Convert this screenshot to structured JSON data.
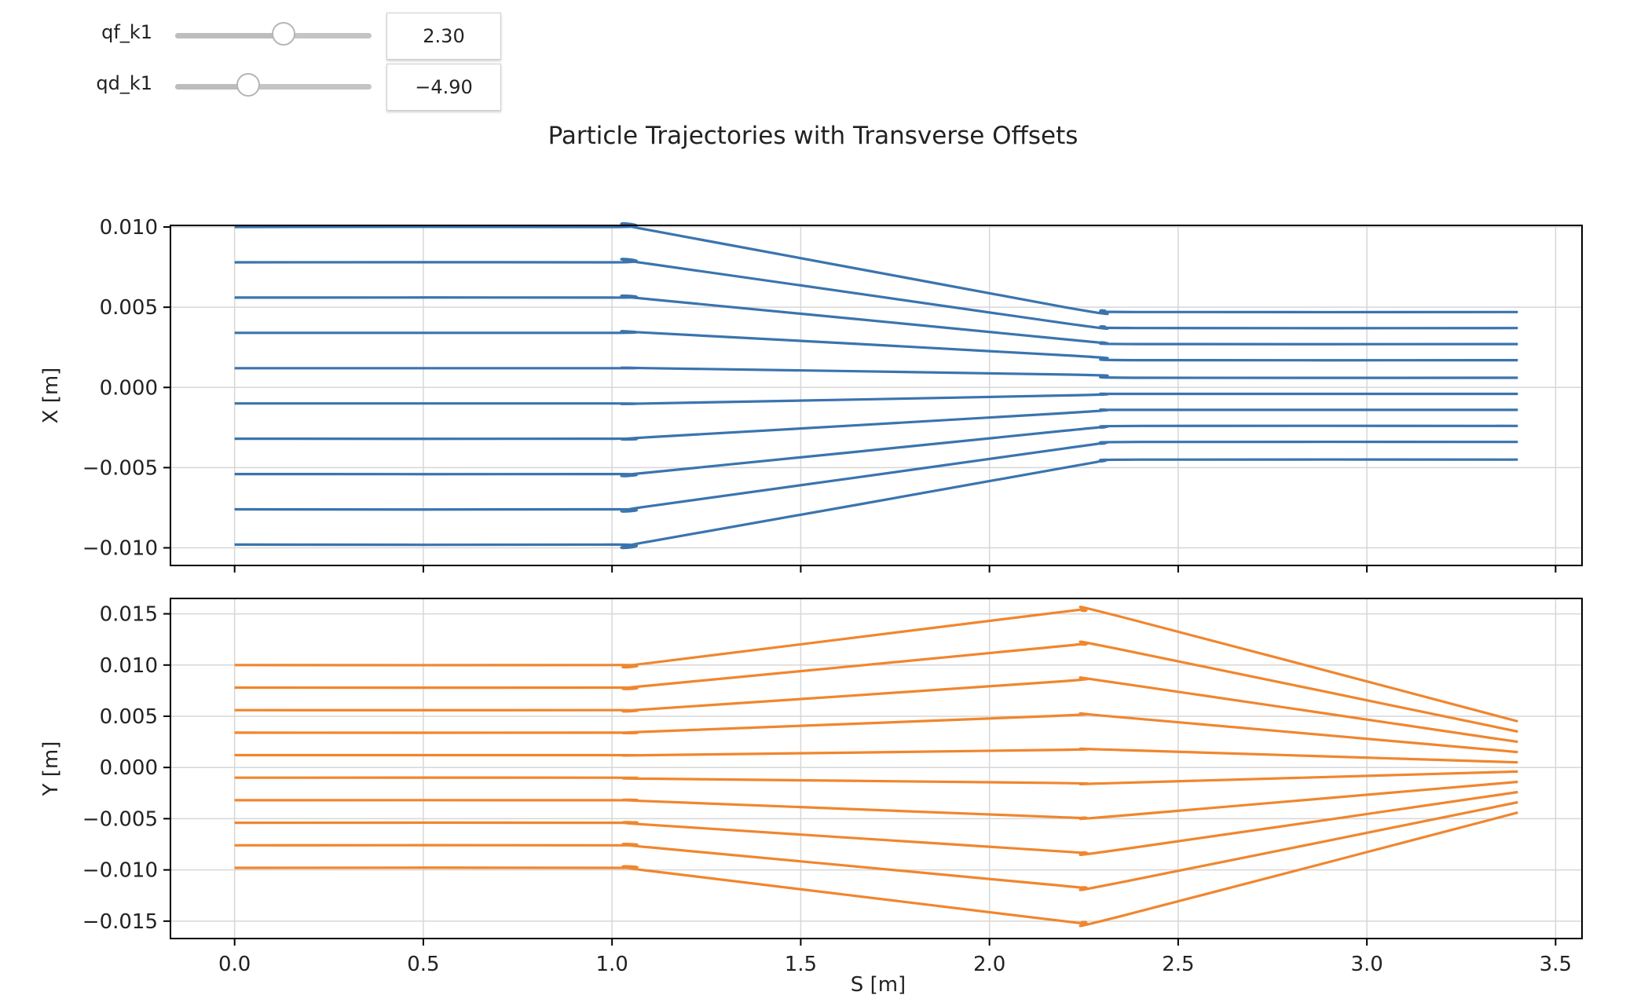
{
  "controls": {
    "qf": {
      "label": "qf_k1",
      "value": "2.30",
      "level": 0.55
    },
    "qd": {
      "label": "qd_k1",
      "value": "−4.90",
      "level": 0.37
    }
  },
  "chart_data": {
    "type": "line",
    "title": "Particle Trajectories with Transverse Offsets",
    "colors": {
      "x": "#3a74ae",
      "y": "#f0862e",
      "grid": "#d7d7d7",
      "axis": "#000000"
    },
    "grid": true,
    "shared_x": {
      "label": "S [m]",
      "lim": [
        -0.17,
        3.57
      ],
      "ticks": [
        0.0,
        0.5,
        1.0,
        1.5,
        2.0,
        2.5,
        3.0,
        3.5
      ],
      "tick_labels": [
        "0.0",
        "0.5",
        "1.0",
        "1.5",
        "2.0",
        "2.5",
        "3.0",
        "3.5"
      ]
    },
    "panels": [
      {
        "name": "X",
        "ylabel": "X [m]",
        "ylim": [
          -0.0111,
          0.0101
        ],
        "yticks": [
          0.01,
          0.005,
          0.0,
          -0.005,
          -0.01
        ],
        "ytick_labels": [
          "0.010",
          "0.005",
          "0.000",
          "−0.005",
          "−0.010"
        ],
        "color_key": "x",
        "show_xtick_labels": false,
        "x": [
          0.0,
          1.0,
          1.1,
          2.2,
          2.3,
          2.4,
          3.4
        ],
        "series": [
          [
            0.01,
            0.01,
            0.0098,
            0.005,
            0.0048,
            0.0047,
            0.0047
          ],
          [
            0.0078,
            0.0078,
            0.0077,
            0.004,
            0.0038,
            0.0037,
            0.0037
          ],
          [
            0.0056,
            0.0056,
            0.0055,
            0.003,
            0.0028,
            0.0027,
            0.0027
          ],
          [
            0.0034,
            0.0034,
            0.0034,
            0.002,
            0.0018,
            0.0017,
            0.0017
          ],
          [
            0.0012,
            0.0012,
            0.0012,
            0.0008,
            0.0007,
            0.0006,
            0.0006
          ],
          [
            -0.001,
            -0.001,
            -0.001,
            -0.0005,
            -0.0004,
            -0.0004,
            -0.0004
          ],
          [
            -0.0032,
            -0.0032,
            -0.0031,
            -0.0016,
            -0.0014,
            -0.0014,
            -0.0014
          ],
          [
            -0.0054,
            -0.0054,
            -0.0053,
            -0.0027,
            -0.0025,
            -0.0024,
            -0.0024
          ],
          [
            -0.0076,
            -0.0076,
            -0.0074,
            -0.0038,
            -0.0035,
            -0.0034,
            -0.0034
          ],
          [
            -0.0098,
            -0.0098,
            -0.0096,
            -0.005,
            -0.0046,
            -0.0045,
            -0.0045
          ]
        ]
      },
      {
        "name": "Y",
        "ylabel": "Y [m]",
        "ylim": [
          -0.0167,
          0.0165
        ],
        "yticks": [
          0.015,
          0.01,
          0.005,
          0.0,
          -0.005,
          -0.01,
          -0.015
        ],
        "ytick_labels": [
          "0.015",
          "0.010",
          "0.005",
          "0.000",
          "−0.005",
          "−0.010",
          "−0.015"
        ],
        "color_key": "y",
        "show_xtick_labels": true,
        "x": [
          0.0,
          1.0,
          1.1,
          2.15,
          2.25,
          2.35,
          3.4
        ],
        "series": [
          [
            0.01,
            0.01,
            0.0102,
            0.015,
            0.0153,
            0.0147,
            0.0045
          ],
          [
            0.0078,
            0.0078,
            0.008,
            0.0117,
            0.012,
            0.0115,
            0.0035
          ],
          [
            0.0056,
            0.0056,
            0.0057,
            0.0083,
            0.0086,
            0.0082,
            0.0025
          ],
          [
            0.0034,
            0.0034,
            0.0035,
            0.005,
            0.0052,
            0.0049,
            0.0015
          ],
          [
            0.0012,
            0.0012,
            0.0012,
            0.0017,
            0.0018,
            0.0017,
            0.0005
          ],
          [
            -0.001,
            -0.001,
            -0.0011,
            -0.0015,
            -0.0016,
            -0.0015,
            -0.0004
          ],
          [
            -0.0032,
            -0.0032,
            -0.0033,
            -0.0048,
            -0.0049,
            -0.0047,
            -0.0014
          ],
          [
            -0.0054,
            -0.0054,
            -0.0056,
            -0.0081,
            -0.0083,
            -0.008,
            -0.0024
          ],
          [
            -0.0076,
            -0.0076,
            -0.0078,
            -0.0114,
            -0.0117,
            -0.0112,
            -0.0034
          ],
          [
            -0.0098,
            -0.0098,
            -0.0101,
            -0.0148,
            -0.0151,
            -0.0145,
            -0.0044
          ]
        ]
      }
    ]
  }
}
